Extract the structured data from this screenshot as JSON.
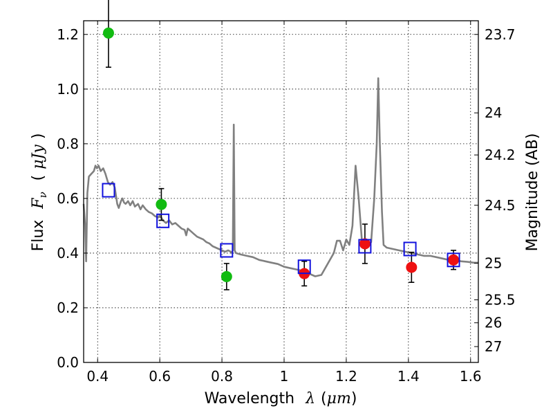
{
  "chart_data": {
    "type": "scatter",
    "xlabel": {
      "prefix": "Wavelength",
      "symbol": "λ",
      "open": "(",
      "unit": "μm",
      "close": ")"
    },
    "ylabel": {
      "prefix": "Flux",
      "symbol": "F",
      "subscript": "ν",
      "open": "(",
      "unit": "μJy",
      "close": ")"
    },
    "y2label": "Magnitude (AB)",
    "xlim": [
      0.355,
      1.625
    ],
    "ylim": [
      0.0,
      1.25
    ],
    "grid": true,
    "x_ticks": [
      0.4,
      0.6,
      0.8,
      1.0,
      1.2,
      1.4,
      1.6
    ],
    "x_tick_labels": [
      "0.4",
      "0.6",
      "0.8",
      "1",
      "1.2",
      "1.4",
      "1.6"
    ],
    "y_ticks": [
      0.0,
      0.2,
      0.4,
      0.6,
      0.8,
      1.0,
      1.2
    ],
    "y_tick_labels": [
      "0.0",
      "0.2",
      "0.4",
      "0.6",
      "0.8",
      "1.0",
      "1.2"
    ],
    "magnitude_ticks": [
      {
        "label": "23.7",
        "flux": 1.2
      },
      {
        "label": "24",
        "flux": 0.913
      },
      {
        "label": "24.2",
        "flux": 0.759
      },
      {
        "label": "24.5",
        "flux": 0.575
      },
      {
        "label": "25",
        "flux": 0.363
      },
      {
        "label": "25.5",
        "flux": 0.229
      },
      {
        "label": "26",
        "flux": 0.145
      },
      {
        "label": "27",
        "flux": 0.058
      }
    ],
    "colors": {
      "green": "#11bb11",
      "red": "#ee1111",
      "blue": "#1111dd",
      "model": "#808080",
      "errorbar": "#000000"
    },
    "series": [
      {
        "marker": "circle",
        "color": "green",
        "points": [
          {
            "x": 0.435,
            "y": 1.205,
            "err": 0.125
          },
          {
            "x": 0.605,
            "y": 0.578,
            "err": 0.058
          },
          {
            "x": 0.815,
            "y": 0.314,
            "err": 0.048
          }
        ]
      },
      {
        "marker": "circle",
        "color": "red",
        "points": [
          {
            "x": 1.065,
            "y": 0.325,
            "err": 0.045
          },
          {
            "x": 1.26,
            "y": 0.434,
            "err": 0.072
          },
          {
            "x": 1.41,
            "y": 0.348,
            "err": 0.055
          },
          {
            "x": 1.545,
            "y": 0.375,
            "err": 0.035
          }
        ]
      },
      {
        "marker": "square",
        "color": "blue",
        "points": [
          {
            "x": 0.435,
            "y": 0.63
          },
          {
            "x": 0.61,
            "y": 0.518
          },
          {
            "x": 0.815,
            "y": 0.41
          },
          {
            "x": 1.065,
            "y": 0.35
          },
          {
            "x": 1.26,
            "y": 0.425
          },
          {
            "x": 1.405,
            "y": 0.415
          },
          {
            "x": 1.545,
            "y": 0.375
          }
        ]
      },
      {
        "marker": "line",
        "color": "model",
        "points": [
          [
            0.355,
            0.58
          ],
          [
            0.36,
            0.5
          ],
          [
            0.363,
            0.37
          ],
          [
            0.367,
            0.62
          ],
          [
            0.372,
            0.68
          ],
          [
            0.38,
            0.69
          ],
          [
            0.388,
            0.7
          ],
          [
            0.393,
            0.72
          ],
          [
            0.398,
            0.71
          ],
          [
            0.403,
            0.72
          ],
          [
            0.41,
            0.7
          ],
          [
            0.418,
            0.71
          ],
          [
            0.425,
            0.69
          ],
          [
            0.433,
            0.66
          ],
          [
            0.44,
            0.65
          ],
          [
            0.448,
            0.66
          ],
          [
            0.455,
            0.64
          ],
          [
            0.463,
            0.58
          ],
          [
            0.468,
            0.565
          ],
          [
            0.475,
            0.59
          ],
          [
            0.48,
            0.6
          ],
          [
            0.485,
            0.585
          ],
          [
            0.49,
            0.58
          ],
          [
            0.498,
            0.59
          ],
          [
            0.505,
            0.575
          ],
          [
            0.513,
            0.59
          ],
          [
            0.52,
            0.57
          ],
          [
            0.53,
            0.58
          ],
          [
            0.538,
            0.56
          ],
          [
            0.545,
            0.575
          ],
          [
            0.555,
            0.56
          ],
          [
            0.565,
            0.55
          ],
          [
            0.575,
            0.545
          ],
          [
            0.585,
            0.535
          ],
          [
            0.595,
            0.53
          ],
          [
            0.6,
            0.54
          ],
          [
            0.61,
            0.52
          ],
          [
            0.62,
            0.51
          ],
          [
            0.63,
            0.52
          ],
          [
            0.64,
            0.505
          ],
          [
            0.65,
            0.51
          ],
          [
            0.66,
            0.5
          ],
          [
            0.67,
            0.49
          ],
          [
            0.68,
            0.485
          ],
          [
            0.685,
            0.465
          ],
          [
            0.69,
            0.49
          ],
          [
            0.7,
            0.48
          ],
          [
            0.71,
            0.47
          ],
          [
            0.72,
            0.46
          ],
          [
            0.73,
            0.455
          ],
          [
            0.74,
            0.45
          ],
          [
            0.75,
            0.44
          ],
          [
            0.76,
            0.435
          ],
          [
            0.77,
            0.425
          ],
          [
            0.78,
            0.42
          ],
          [
            0.79,
            0.415
          ],
          [
            0.8,
            0.41
          ],
          [
            0.81,
            0.405
          ],
          [
            0.82,
            0.41
          ],
          [
            0.828,
            0.405
          ],
          [
            0.832,
            0.4
          ],
          [
            0.835,
            0.41
          ],
          [
            0.838,
            0.87
          ],
          [
            0.841,
            0.41
          ],
          [
            0.845,
            0.4
          ],
          [
            0.86,
            0.395
          ],
          [
            0.88,
            0.39
          ],
          [
            0.9,
            0.385
          ],
          [
            0.92,
            0.375
          ],
          [
            0.94,
            0.37
          ],
          [
            0.96,
            0.365
          ],
          [
            0.98,
            0.36
          ],
          [
            1.0,
            0.35
          ],
          [
            1.02,
            0.345
          ],
          [
            1.04,
            0.34
          ],
          [
            1.06,
            0.335
          ],
          [
            1.08,
            0.325
          ],
          [
            1.1,
            0.315
          ],
          [
            1.12,
            0.32
          ],
          [
            1.14,
            0.36
          ],
          [
            1.16,
            0.4
          ],
          [
            1.17,
            0.445
          ],
          [
            1.18,
            0.445
          ],
          [
            1.19,
            0.41
          ],
          [
            1.2,
            0.45
          ],
          [
            1.21,
            0.43
          ],
          [
            1.22,
            0.5
          ],
          [
            1.23,
            0.72
          ],
          [
            1.24,
            0.6
          ],
          [
            1.25,
            0.45
          ],
          [
            1.26,
            0.44
          ],
          [
            1.27,
            0.43
          ],
          [
            1.28,
            0.44
          ],
          [
            1.29,
            0.6
          ],
          [
            1.298,
            0.8
          ],
          [
            1.303,
            1.04
          ],
          [
            1.308,
            0.8
          ],
          [
            1.315,
            0.55
          ],
          [
            1.32,
            0.43
          ],
          [
            1.33,
            0.42
          ],
          [
            1.35,
            0.415
          ],
          [
            1.37,
            0.41
          ],
          [
            1.39,
            0.405
          ],
          [
            1.41,
            0.4
          ],
          [
            1.43,
            0.395
          ],
          [
            1.45,
            0.39
          ],
          [
            1.47,
            0.39
          ],
          [
            1.49,
            0.385
          ],
          [
            1.51,
            0.38
          ],
          [
            1.53,
            0.375
          ],
          [
            1.55,
            0.375
          ],
          [
            1.57,
            0.37
          ],
          [
            1.59,
            0.368
          ],
          [
            1.61,
            0.365
          ],
          [
            1.625,
            0.365
          ]
        ]
      }
    ]
  }
}
